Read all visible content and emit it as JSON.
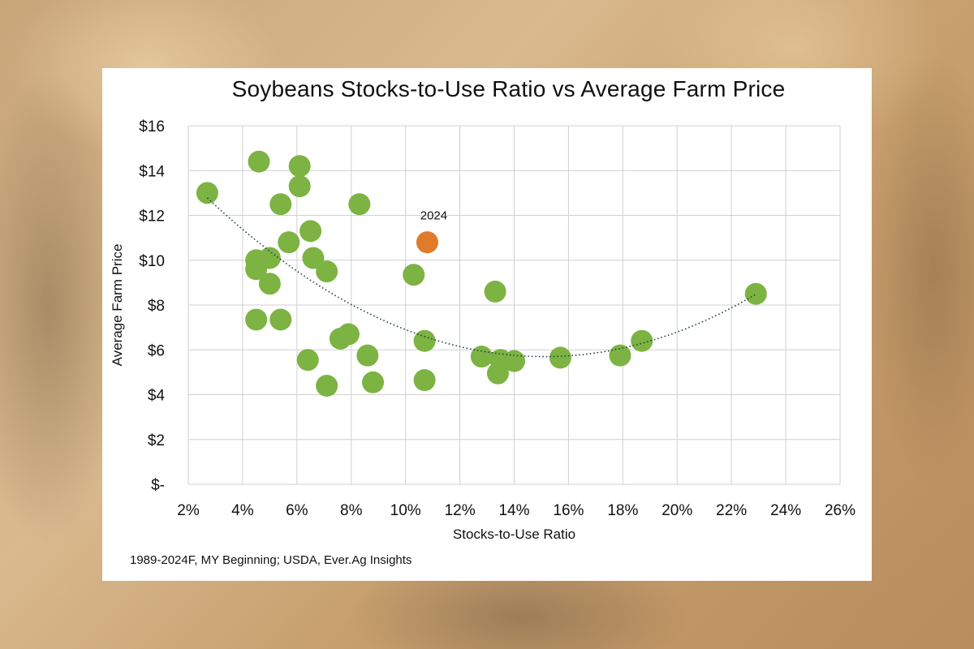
{
  "colors": {
    "point": "#7cb342",
    "highlight": "#e07b2a",
    "grid": "#d0d0d0",
    "trendline": "#1f3b4d",
    "text": "#111111"
  },
  "chart_data": {
    "type": "scatter",
    "title": "Soybeans Stocks-to-Use Ratio vs Average Farm Price",
    "xlabel": "Stocks-to-Use Ratio",
    "ylabel": "Average Farm Price",
    "xlim": [
      2,
      26
    ],
    "ylim": [
      0,
      16
    ],
    "x_unit": "%",
    "y_unit": "$",
    "x_ticks": [
      "2%",
      "4%",
      "6%",
      "8%",
      "10%",
      "12%",
      "14%",
      "16%",
      "18%",
      "20%",
      "22%",
      "24%",
      "26%"
    ],
    "y_ticks": [
      "$-",
      "$2",
      "$4",
      "$6",
      "$8",
      "$10",
      "$12",
      "$14",
      "$16"
    ],
    "grid": true,
    "series": [
      {
        "points": [
          {
            "x": 2.7,
            "y": 13.0
          },
          {
            "x": 4.6,
            "y": 14.4
          },
          {
            "x": 4.5,
            "y": 10.0
          },
          {
            "x": 4.5,
            "y": 9.6
          },
          {
            "x": 5.0,
            "y": 10.1
          },
          {
            "x": 5.0,
            "y": 8.95
          },
          {
            "x": 4.5,
            "y": 7.35
          },
          {
            "x": 5.4,
            "y": 7.35
          },
          {
            "x": 5.4,
            "y": 12.5
          },
          {
            "x": 5.7,
            "y": 10.8
          },
          {
            "x": 6.1,
            "y": 14.2
          },
          {
            "x": 6.1,
            "y": 13.3
          },
          {
            "x": 6.5,
            "y": 11.3
          },
          {
            "x": 6.6,
            "y": 10.1
          },
          {
            "x": 7.1,
            "y": 9.5
          },
          {
            "x": 6.4,
            "y": 5.55
          },
          {
            "x": 7.1,
            "y": 4.4
          },
          {
            "x": 7.6,
            "y": 6.5
          },
          {
            "x": 7.9,
            "y": 6.7
          },
          {
            "x": 8.3,
            "y": 12.5
          },
          {
            "x": 8.6,
            "y": 5.75
          },
          {
            "x": 8.8,
            "y": 4.55
          },
          {
            "x": 10.3,
            "y": 9.35
          },
          {
            "x": 10.7,
            "y": 6.4
          },
          {
            "x": 10.7,
            "y": 4.65
          },
          {
            "x": 12.8,
            "y": 5.7
          },
          {
            "x": 13.3,
            "y": 8.6
          },
          {
            "x": 13.5,
            "y": 5.55
          },
          {
            "x": 13.4,
            "y": 4.95
          },
          {
            "x": 14.0,
            "y": 5.5
          },
          {
            "x": 15.7,
            "y": 5.65
          },
          {
            "x": 17.9,
            "y": 5.75
          },
          {
            "x": 18.7,
            "y": 6.4
          },
          {
            "x": 22.9,
            "y": 8.5
          }
        ]
      }
    ],
    "highlight": {
      "x": 10.8,
      "y": 10.8,
      "label": "2024"
    },
    "trendline": {
      "type": "polynomial-2",
      "from": 2.7,
      "to": 22.9
    }
  },
  "source_note": "1989-2024F, MY Beginning; USDA,  Ever.Ag Insights"
}
